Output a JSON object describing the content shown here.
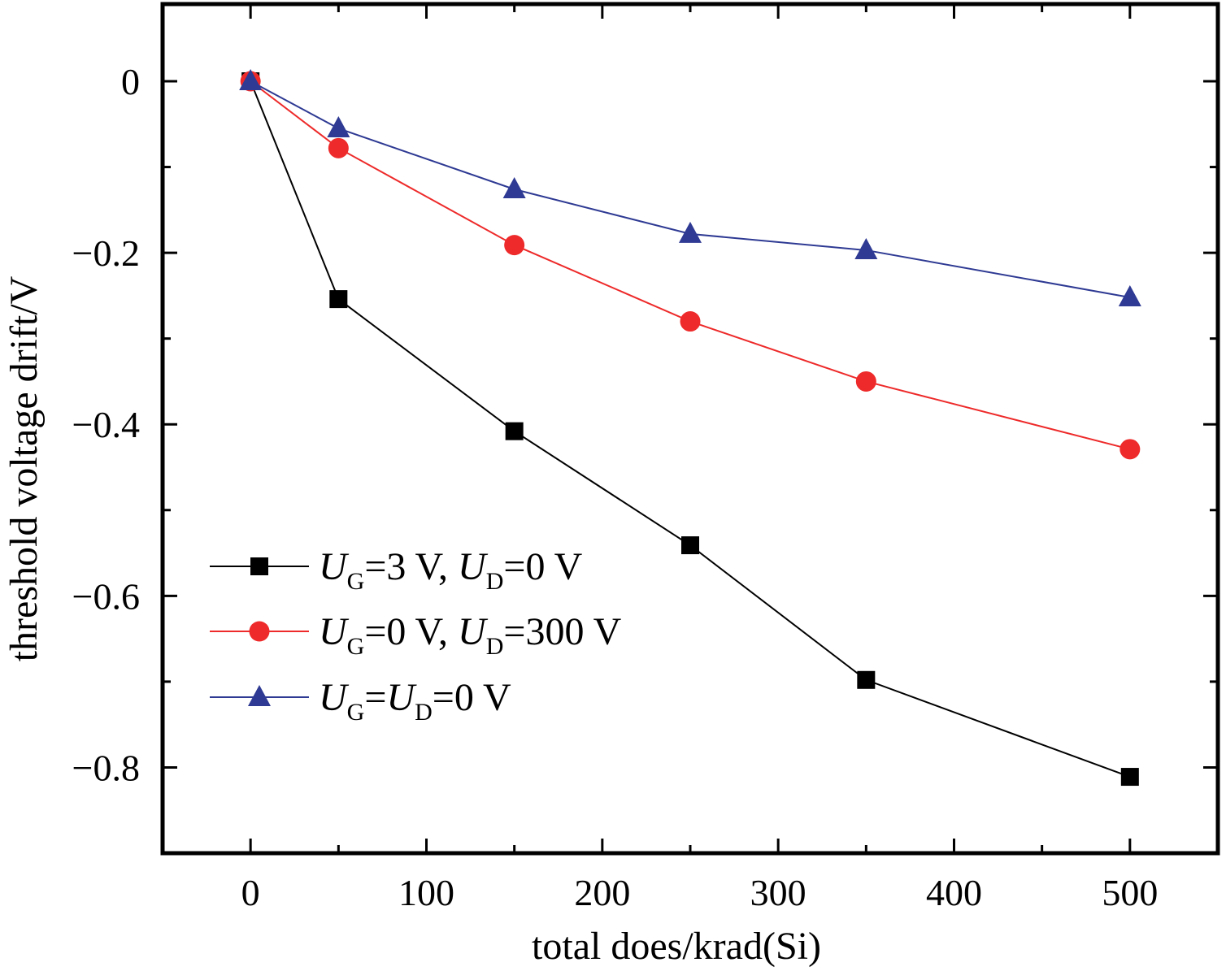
{
  "chart_data": {
    "type": "line",
    "xlabel": "total does/krad(Si)",
    "ylabel": "threshold voltage drift/V",
    "xlim": [
      -50,
      550
    ],
    "ylim": [
      -0.9,
      0.09
    ],
    "x_ticks": [
      0,
      100,
      200,
      300,
      400,
      500
    ],
    "x_tick_labels": [
      "0",
      "100",
      "200",
      "300",
      "400",
      "500"
    ],
    "y_ticks": [
      0,
      -0.2,
      -0.4,
      -0.6,
      -0.8
    ],
    "y_tick_labels": [
      "0",
      "−0.2",
      "−0.4",
      "−0.6",
      "−0.8"
    ],
    "grid": false,
    "legend_position": "bottom-left",
    "series": [
      {
        "key": "black",
        "legend": {
          "u1": "U",
          "s1": "G",
          "mid": "=3 V, ",
          "u2": "U",
          "s2": "D",
          "tail": "=0 V"
        },
        "color": "#000000",
        "marker": "square",
        "x": [
          0,
          50,
          150,
          250,
          350,
          500
        ],
        "y": [
          0,
          -0.254,
          -0.408,
          -0.541,
          -0.698,
          -0.811
        ]
      },
      {
        "key": "red",
        "legend": {
          "u1": "U",
          "s1": "G",
          "mid": "=0 V, ",
          "u2": "U",
          "s2": "D",
          "tail": "=300 V"
        },
        "color": "#ee2a2a",
        "marker": "circle",
        "x": [
          0,
          50,
          150,
          250,
          350,
          500
        ],
        "y": [
          0,
          -0.078,
          -0.191,
          -0.28,
          -0.35,
          -0.429
        ]
      },
      {
        "key": "blue",
        "legend": {
          "u1": "U",
          "s1": "G",
          "mid": "=",
          "u2": "U",
          "s2": "D",
          "tail": "=0 V"
        },
        "color": "#2e3a93",
        "marker": "triangle",
        "x": [
          0,
          50,
          150,
          250,
          350,
          500
        ],
        "y": [
          0,
          -0.055,
          -0.126,
          -0.178,
          -0.197,
          -0.252
        ]
      }
    ]
  }
}
